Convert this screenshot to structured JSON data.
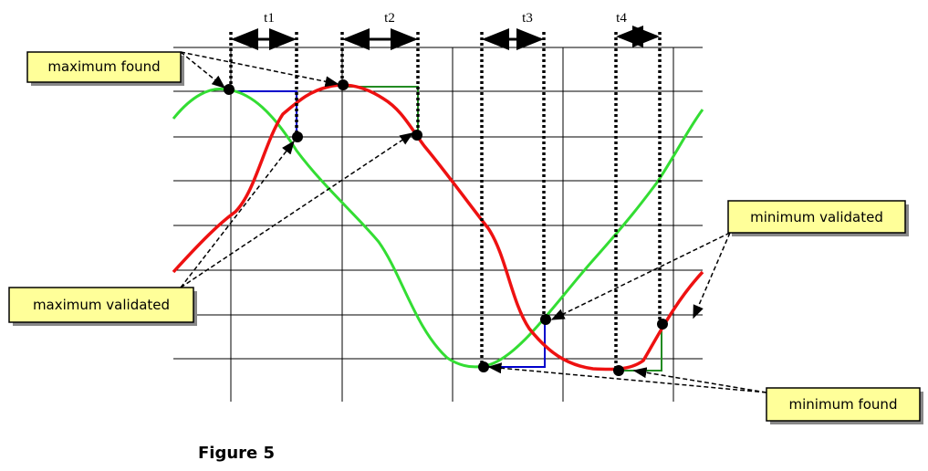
{
  "intervals": [
    "t1",
    "t2",
    "t3",
    "t4"
  ],
  "labels": {
    "maximum_found": "maximum found",
    "maximum_validated": "maximum validated",
    "minimum_validated": "minimum validated",
    "minimum_found": "minimum found"
  },
  "caption": "Figure 5"
}
